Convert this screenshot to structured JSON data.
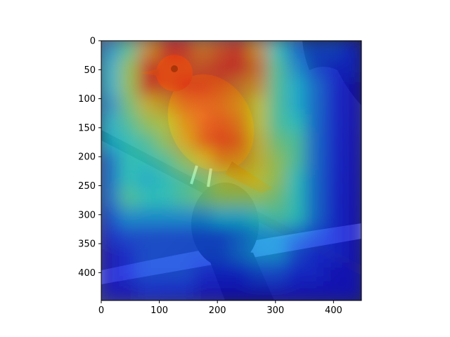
{
  "chart_data": {
    "type": "heatmap",
    "title": "",
    "xlabel": "",
    "ylabel": "",
    "xlim": [
      0,
      448
    ],
    "ylim": [
      448,
      0
    ],
    "x_ticks": [
      0,
      100,
      200,
      300,
      400
    ],
    "y_ticks": [
      0,
      50,
      100,
      150,
      200,
      250,
      300,
      350,
      400
    ],
    "x_tick_labels": [
      "0",
      "100",
      "200",
      "300",
      "400"
    ],
    "y_tick_labels": [
      "0",
      "50",
      "100",
      "150",
      "200",
      "250",
      "300",
      "350",
      "400"
    ],
    "grid": false,
    "colormap": "jet",
    "background_image": "bird-on-branch-photo",
    "activation_grid_14x14": [
      [
        0.3,
        0.45,
        0.7,
        0.85,
        0.85,
        0.75,
        0.8,
        0.85,
        0.7,
        0.4,
        0.25,
        0.2,
        0.2,
        0.15
      ],
      [
        0.35,
        0.55,
        0.85,
        0.8,
        0.8,
        0.8,
        0.85,
        0.85,
        0.75,
        0.45,
        0.3,
        0.2,
        0.15,
        0.15
      ],
      [
        0.35,
        0.55,
        0.85,
        0.8,
        0.85,
        0.85,
        0.8,
        0.75,
        0.7,
        0.45,
        0.35,
        0.25,
        0.15,
        0.1
      ],
      [
        0.3,
        0.5,
        0.65,
        0.7,
        0.78,
        0.8,
        0.78,
        0.72,
        0.62,
        0.45,
        0.35,
        0.25,
        0.15,
        0.1
      ],
      [
        0.35,
        0.45,
        0.55,
        0.6,
        0.72,
        0.8,
        0.82,
        0.76,
        0.62,
        0.45,
        0.4,
        0.25,
        0.15,
        0.1
      ],
      [
        0.35,
        0.4,
        0.45,
        0.55,
        0.68,
        0.8,
        0.85,
        0.8,
        0.65,
        0.5,
        0.45,
        0.25,
        0.15,
        0.1
      ],
      [
        0.25,
        0.4,
        0.4,
        0.45,
        0.55,
        0.65,
        0.75,
        0.72,
        0.65,
        0.55,
        0.45,
        0.25,
        0.15,
        0.1
      ],
      [
        0.25,
        0.4,
        0.35,
        0.4,
        0.45,
        0.5,
        0.6,
        0.65,
        0.62,
        0.55,
        0.4,
        0.25,
        0.15,
        0.1
      ],
      [
        0.25,
        0.45,
        0.4,
        0.4,
        0.45,
        0.5,
        0.55,
        0.55,
        0.55,
        0.5,
        0.4,
        0.25,
        0.15,
        0.1
      ],
      [
        0.2,
        0.3,
        0.3,
        0.3,
        0.3,
        0.3,
        0.35,
        0.35,
        0.4,
        0.45,
        0.4,
        0.25,
        0.15,
        0.1
      ],
      [
        0.15,
        0.2,
        0.2,
        0.2,
        0.2,
        0.2,
        0.2,
        0.25,
        0.3,
        0.3,
        0.25,
        0.2,
        0.15,
        0.1
      ],
      [
        0.1,
        0.15,
        0.2,
        0.2,
        0.2,
        0.2,
        0.2,
        0.25,
        0.3,
        0.3,
        0.2,
        0.15,
        0.15,
        0.1
      ],
      [
        0.1,
        0.15,
        0.2,
        0.2,
        0.2,
        0.15,
        0.15,
        0.15,
        0.2,
        0.2,
        0.15,
        0.15,
        0.1,
        0.1
      ],
      [
        0.1,
        0.1,
        0.15,
        0.15,
        0.15,
        0.1,
        0.1,
        0.1,
        0.1,
        0.1,
        0.1,
        0.1,
        0.1,
        0.1
      ]
    ]
  }
}
